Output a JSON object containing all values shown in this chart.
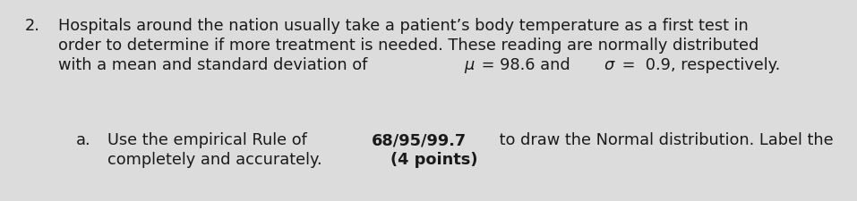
{
  "background_color": "#dcdcdc",
  "fig_width": 9.57,
  "fig_height": 2.26,
  "dpi": 100,
  "text_color": "#1a1a1a",
  "main_font_size": 12.8,
  "number": "2.",
  "line1": "Hospitals around the nation usually take a patient’s body temperature as a first test in",
  "line2": "order to determine if more treatment is needed. These reading are normally distributed",
  "line3_pre": "with a mean and standard deviation of ",
  "line3_mu": "μ",
  "line3_mid": " = 98.6 and ",
  "line3_sigma": "σ",
  "line3_post": " =  0.9, respectively.",
  "sub_label": "a.",
  "sub1_pre": "Use the empirical Rule of ",
  "sub1_bold": "68/95/99.7",
  "sub1_post": " to draw the Normal distribution. Label the",
  "sub2_pre": "completely and accurately. ",
  "sub2_bold": "(4 points)"
}
